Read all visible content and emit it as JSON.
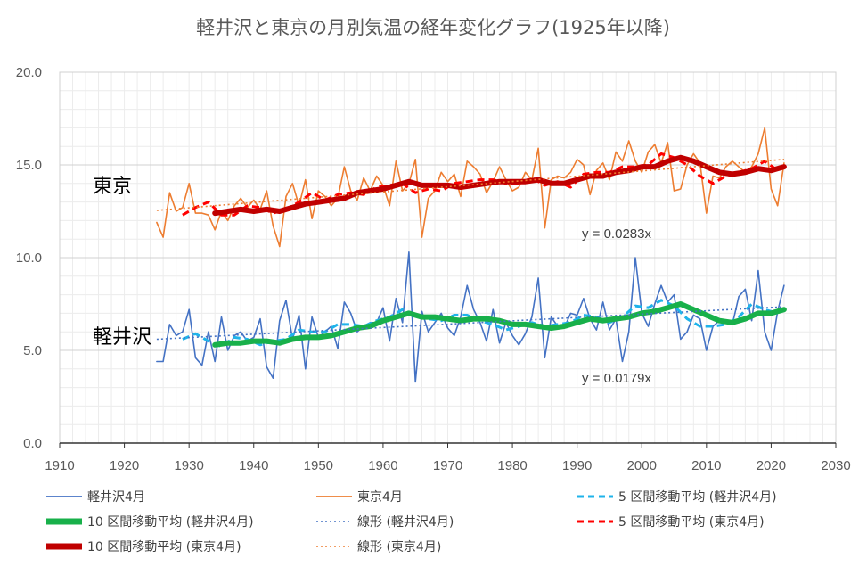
{
  "chart_data": {
    "type": "line",
    "title": "軽井沢と東京の月別気温の経年変化グラフ(1925年以降)",
    "xlabel": "",
    "ylabel": "",
    "xlim": [
      1910,
      2030
    ],
    "ylim": [
      0,
      20
    ],
    "xticks": [
      "1910",
      "1920",
      "1930",
      "1940",
      "1950",
      "1960",
      "1970",
      "1980",
      "1990",
      "2000",
      "2010",
      "2020",
      "2030"
    ],
    "yticks": [
      "0.0",
      "5.0",
      "10.0",
      "15.0",
      "20.0"
    ],
    "grid": true,
    "labels": {
      "tokyo": "東京",
      "karuizawa": "軽井沢"
    },
    "equations": {
      "tokyo": "y = 0.0283x",
      "karuizawa": "y = 0.0179x"
    },
    "colors": {
      "karuizawa": "#4472C4",
      "tokyo": "#ED7D31",
      "karuizawa_ma5": "#1FB3EA",
      "karuizawa_ma10": "#18B04A",
      "tokyo_ma5": "#FF0000",
      "tokyo_ma10": "#C00000"
    },
    "legend": [
      {
        "label": "軽井沢4月",
        "style": "thin",
        "color": "#4472C4"
      },
      {
        "label": "東京4月",
        "style": "thin",
        "color": "#ED7D31"
      },
      {
        "label": "5 区間移動平均 (軽井沢4月)",
        "style": "dash",
        "color": "#1FB3EA"
      },
      {
        "label": "10 区間移動平均 (軽井沢4月)",
        "style": "thick",
        "color": "#18B04A"
      },
      {
        "label": "線形 (軽井沢4月)",
        "style": "dot",
        "color": "#4472C4"
      },
      {
        "label": "5 区間移動平均 (東京4月)",
        "style": "dash",
        "color": "#FF0000"
      },
      {
        "label": "10 区間移動平均 (東京4月)",
        "style": "thick",
        "color": "#C00000"
      },
      {
        "label": "線形 (東京4月)",
        "style": "dot",
        "color": "#ED7D31"
      }
    ],
    "series": [
      {
        "name": "東京4月",
        "x": [
          1925,
          1926,
          1927,
          1928,
          1929,
          1930,
          1931,
          1932,
          1933,
          1934,
          1935,
          1936,
          1937,
          1938,
          1939,
          1940,
          1941,
          1942,
          1943,
          1944,
          1945,
          1946,
          1947,
          1948,
          1949,
          1950,
          1951,
          1952,
          1953,
          1954,
          1955,
          1956,
          1957,
          1958,
          1959,
          1960,
          1961,
          1962,
          1963,
          1964,
          1965,
          1966,
          1967,
          1968,
          1969,
          1970,
          1971,
          1972,
          1973,
          1974,
          1975,
          1976,
          1977,
          1978,
          1979,
          1980,
          1981,
          1982,
          1983,
          1984,
          1985,
          1986,
          1987,
          1988,
          1989,
          1990,
          1991,
          1992,
          1993,
          1994,
          1995,
          1996,
          1997,
          1998,
          1999,
          2000,
          2001,
          2002,
          2003,
          2004,
          2005,
          2006,
          2007,
          2008,
          2009,
          2010,
          2011,
          2012,
          2013,
          2014,
          2015,
          2016,
          2017,
          2018,
          2019,
          2020,
          2021,
          2022
        ],
        "values": [
          11.9,
          11.1,
          13.5,
          12.5,
          12.7,
          14.0,
          12.4,
          12.4,
          12.3,
          11.5,
          12.5,
          12.0,
          12.8,
          13.2,
          12.7,
          13.1,
          12.6,
          13.6,
          11.7,
          10.6,
          13.3,
          14.0,
          12.8,
          14.2,
          12.1,
          13.6,
          13.3,
          12.8,
          13.2,
          14.9,
          13.6,
          13.1,
          14.3,
          13.6,
          14.4,
          13.9,
          12.8,
          15.2,
          13.6,
          14.0,
          15.3,
          11.1,
          13.2,
          13.6,
          14.6,
          14.1,
          14.5,
          13.3,
          15.2,
          14.9,
          14.5,
          13.5,
          14.1,
          14.9,
          14.2,
          13.6,
          13.8,
          14.6,
          14.2,
          15.9,
          11.6,
          14.2,
          14.4,
          14.3,
          14.6,
          15.3,
          15.0,
          13.4,
          14.7,
          15.1,
          14.2,
          15.7,
          15.2,
          16.3,
          15.2,
          14.6,
          15.7,
          16.1,
          15.1,
          16.2,
          13.6,
          13.7,
          15.0,
          15.6,
          15.1,
          12.4,
          14.4,
          14.3,
          14.9,
          15.2,
          14.9,
          14.6,
          14.9,
          15.6,
          17.0,
          13.7,
          12.8,
          15.1
        ]
      },
      {
        "name": "軽井沢4月",
        "x": [
          1925,
          1926,
          1927,
          1928,
          1929,
          1930,
          1931,
          1932,
          1933,
          1934,
          1935,
          1936,
          1937,
          1938,
          1939,
          1940,
          1941,
          1942,
          1943,
          1944,
          1945,
          1946,
          1947,
          1948,
          1949,
          1950,
          1951,
          1952,
          1953,
          1954,
          1955,
          1956,
          1957,
          1958,
          1959,
          1960,
          1961,
          1962,
          1963,
          1964,
          1965,
          1966,
          1967,
          1968,
          1969,
          1970,
          1971,
          1972,
          1973,
          1974,
          1975,
          1976,
          1977,
          1978,
          1979,
          1980,
          1981,
          1982,
          1983,
          1984,
          1985,
          1986,
          1987,
          1988,
          1989,
          1990,
          1991,
          1992,
          1993,
          1994,
          1995,
          1996,
          1997,
          1998,
          1999,
          2000,
          2001,
          2002,
          2003,
          2004,
          2005,
          2006,
          2007,
          2008,
          2009,
          2010,
          2011,
          2012,
          2013,
          2014,
          2015,
          2016,
          2017,
          2018,
          2019,
          2020,
          2021,
          2022
        ],
        "values": [
          4.4,
          4.4,
          6.4,
          5.8,
          6.0,
          7.2,
          4.6,
          4.2,
          6.0,
          4.4,
          6.8,
          5.0,
          5.8,
          6.0,
          5.5,
          5.7,
          6.7,
          4.1,
          3.5,
          6.6,
          7.7,
          5.6,
          6.9,
          4.0,
          6.8,
          5.7,
          6.0,
          6.3,
          5.1,
          7.6,
          7.0,
          6.0,
          6.3,
          6.5,
          6.5,
          7.3,
          5.5,
          7.8,
          6.5,
          10.3,
          3.3,
          7.1,
          6.0,
          6.5,
          7.0,
          6.2,
          5.8,
          6.8,
          8.5,
          7.2,
          6.5,
          5.5,
          7.2,
          5.4,
          6.5,
          5.8,
          5.3,
          5.9,
          6.8,
          8.9,
          4.6,
          6.8,
          6.3,
          6.2,
          7.0,
          6.9,
          7.8,
          6.7,
          6.1,
          7.6,
          6.1,
          6.7,
          4.4,
          6.0,
          10.0,
          7.0,
          6.3,
          7.5,
          8.5,
          7.6,
          8.0,
          5.6,
          6.0,
          6.9,
          6.7,
          5.0,
          6.3,
          6.6,
          6.5,
          6.4,
          7.9,
          8.3,
          6.6,
          9.3,
          6.0,
          5.0,
          7.1,
          8.5
        ]
      },
      {
        "name": "5 区間移動平均 (東京4月)",
        "x": [
          1929,
          1931,
          1933,
          1935,
          1937,
          1939,
          1941,
          1943,
          1945,
          1947,
          1949,
          1951,
          1953,
          1955,
          1957,
          1959,
          1961,
          1963,
          1965,
          1967,
          1969,
          1971,
          1973,
          1975,
          1977,
          1979,
          1981,
          1983,
          1985,
          1987,
          1989,
          1991,
          1993,
          1995,
          1997,
          1999,
          2001,
          2003,
          2005,
          2007,
          2009,
          2011,
          2013,
          2015,
          2017,
          2019,
          2021
        ],
        "values": [
          12.3,
          12.7,
          13.0,
          12.3,
          12.3,
          12.8,
          12.7,
          12.4,
          12.6,
          13.0,
          13.5,
          13.1,
          13.4,
          13.5,
          13.4,
          13.8,
          13.9,
          14.0,
          13.5,
          13.7,
          13.6,
          14.0,
          14.1,
          14.2,
          14.2,
          14.0,
          14.0,
          14.3,
          13.9,
          14.1,
          13.8,
          14.5,
          14.6,
          14.6,
          14.9,
          14.9,
          15.0,
          15.6,
          15.4,
          15.0,
          14.4,
          14.0,
          14.4,
          14.6,
          14.8,
          15.2,
          14.7
        ]
      },
      {
        "name": "10 区間移動平均 (東京4月)",
        "x": [
          1934,
          1936,
          1938,
          1940,
          1942,
          1944,
          1946,
          1948,
          1950,
          1952,
          1954,
          1956,
          1958,
          1960,
          1962,
          1964,
          1966,
          1968,
          1970,
          1972,
          1974,
          1976,
          1978,
          1980,
          1982,
          1984,
          1986,
          1988,
          1990,
          1992,
          1994,
          1996,
          1998,
          2000,
          2002,
          2004,
          2006,
          2008,
          2010,
          2012,
          2014,
          2016,
          2018,
          2020,
          2022
        ],
        "values": [
          12.4,
          12.5,
          12.6,
          12.5,
          12.6,
          12.5,
          12.7,
          12.9,
          13.0,
          13.1,
          13.2,
          13.5,
          13.6,
          13.7,
          13.9,
          14.1,
          13.9,
          13.9,
          13.9,
          13.8,
          13.9,
          14.0,
          14.1,
          14.1,
          14.1,
          14.2,
          14.0,
          14.0,
          14.2,
          14.4,
          14.4,
          14.6,
          14.7,
          14.9,
          14.9,
          15.2,
          15.4,
          15.2,
          14.9,
          14.6,
          14.5,
          14.6,
          14.8,
          14.7,
          14.9
        ]
      },
      {
        "name": "線形 (東京4月)",
        "x": [
          1925,
          2022
        ],
        "values": [
          12.55,
          15.3
        ]
      },
      {
        "name": "5 区間移動平均 (軽井沢4月)",
        "x": [
          1929,
          1931,
          1933,
          1935,
          1937,
          1939,
          1941,
          1943,
          1945,
          1947,
          1949,
          1951,
          1953,
          1955,
          1957,
          1959,
          1961,
          1963,
          1965,
          1967,
          1969,
          1971,
          1973,
          1975,
          1977,
          1979,
          1981,
          1983,
          1985,
          1987,
          1989,
          1991,
          1993,
          1995,
          1997,
          1999,
          2001,
          2003,
          2005,
          2007,
          2009,
          2011,
          2013,
          2015,
          2017,
          2019,
          2021
        ],
        "values": [
          5.6,
          5.9,
          5.5,
          5.2,
          5.7,
          5.6,
          5.3,
          5.5,
          5.6,
          6.1,
          6.0,
          6.0,
          6.4,
          6.4,
          6.3,
          6.6,
          6.8,
          7.2,
          6.9,
          6.7,
          6.6,
          6.9,
          6.9,
          6.6,
          6.4,
          6.1,
          6.3,
          6.5,
          6.3,
          6.4,
          6.5,
          6.9,
          6.8,
          6.5,
          6.8,
          7.4,
          7.3,
          7.7,
          7.4,
          6.7,
          6.3,
          6.3,
          6.4,
          6.8,
          7.5,
          7.2,
          7.0
        ]
      },
      {
        "name": "10 区間移動平均 (軽井沢4月)",
        "x": [
          1934,
          1936,
          1938,
          1940,
          1942,
          1944,
          1946,
          1948,
          1950,
          1952,
          1954,
          1956,
          1958,
          1960,
          1962,
          1964,
          1966,
          1968,
          1970,
          1972,
          1974,
          1976,
          1978,
          1980,
          1982,
          1984,
          1986,
          1988,
          1990,
          1992,
          1994,
          1996,
          1998,
          2000,
          2002,
          2004,
          2006,
          2008,
          2010,
          2012,
          2014,
          2016,
          2018,
          2020,
          2022
        ],
        "values": [
          5.3,
          5.4,
          5.4,
          5.5,
          5.5,
          5.4,
          5.6,
          5.7,
          5.7,
          5.8,
          6.0,
          6.2,
          6.3,
          6.6,
          6.8,
          7.0,
          6.8,
          6.8,
          6.7,
          6.6,
          6.7,
          6.7,
          6.6,
          6.4,
          6.4,
          6.3,
          6.2,
          6.3,
          6.5,
          6.7,
          6.6,
          6.7,
          6.8,
          7.0,
          7.1,
          7.3,
          7.5,
          7.2,
          6.9,
          6.6,
          6.5,
          6.7,
          7.0,
          7.0,
          7.2
        ]
      },
      {
        "name": "線形 (軽井沢4月)",
        "x": [
          1925,
          2022
        ],
        "values": [
          5.6,
          7.35
        ]
      }
    ]
  }
}
